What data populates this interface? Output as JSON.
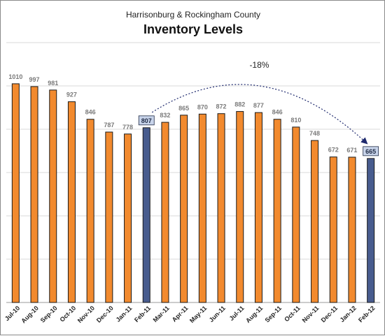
{
  "chart_data": {
    "type": "bar",
    "subtitle": "Harrisonburg & Rockingham County",
    "title": "Inventory Levels",
    "categories": [
      "Jul-10",
      "Aug-10",
      "Sep-10",
      "Oct-10",
      "Nov-10",
      "Dec-10",
      "Jan-11",
      "Feb-11",
      "Mar-11",
      "Apr-11",
      "May-11",
      "Jun-11",
      "Jul-11",
      "Aug-11",
      "Sep-11",
      "Oct-11",
      "Nov-11",
      "Dec-11",
      "Jan-12",
      "Feb-12"
    ],
    "values": [
      1010,
      997,
      981,
      927,
      846,
      787,
      778,
      807,
      832,
      865,
      870,
      872,
      882,
      877,
      846,
      810,
      748,
      672,
      671,
      665
    ],
    "value_labels": [
      "1010",
      "997",
      "981",
      "927",
      "846",
      "787",
      "778",
      "807",
      "832",
      "865",
      "870",
      "872",
      "882",
      "877",
      "846",
      "810",
      "748",
      "672",
      "671",
      "665"
    ],
    "highlighted_categories": [
      "Feb-11",
      "Feb-12"
    ],
    "ylim": [
      0,
      1200
    ],
    "y_grid_step": 200,
    "grid": true,
    "annotation": {
      "text": "-18%",
      "from": "Feb-11",
      "to": "Feb-12"
    },
    "colors": {
      "bar": "#F28A2E",
      "highlight": "#485C8E",
      "grid": "#d9d9d9",
      "label_box": "#c8d4ea"
    }
  }
}
